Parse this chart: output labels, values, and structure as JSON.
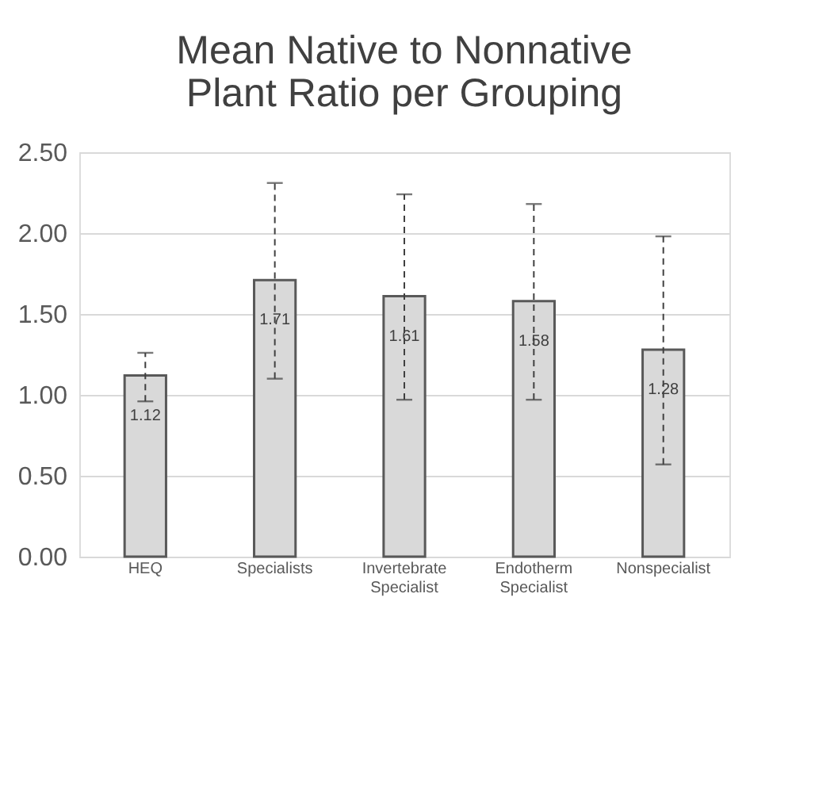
{
  "chart_data": {
    "type": "bar",
    "title": "Mean Native to Nonnative Plant Ratio per Grouping",
    "categories": [
      "HEQ",
      "Specialists",
      "Invertebrate Specialist",
      "Endotherm Specialist",
      "Nonspecialist"
    ],
    "values": [
      1.12,
      1.71,
      1.61,
      1.58,
      1.28
    ],
    "errors": [
      [
        0.96,
        1.26
      ],
      [
        1.1,
        2.31
      ],
      [
        0.97,
        2.24
      ],
      [
        0.97,
        2.18
      ],
      [
        0.57,
        1.98
      ]
    ],
    "color": "#d9d9d9",
    "ylim": [
      0,
      2.5
    ],
    "yticks": [
      {
        "value": 0,
        "label": "0.00"
      },
      {
        "value": 0.5,
        "label": "0.50"
      },
      {
        "value": 1,
        "label": "1.00"
      },
      {
        "value": 1.5,
        "label": "1.50"
      },
      {
        "value": 2,
        "label": "2.00"
      },
      {
        "value": 2.5,
        "label": "2.50"
      }
    ],
    "grid": "y",
    "data_labels": true,
    "line_style": "dashed"
  }
}
